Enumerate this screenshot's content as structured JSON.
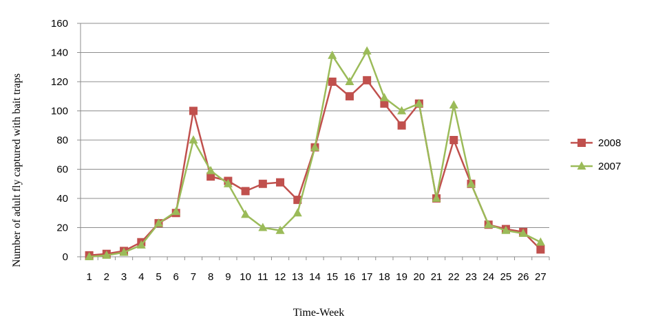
{
  "chart_data": {
    "type": "line",
    "title": "",
    "xlabel": "Time-Week",
    "ylabel": "Number of adult fly captured with bait traps",
    "categories": [
      "1",
      "2",
      "3",
      "4",
      "5",
      "6",
      "7",
      "8",
      "9",
      "10",
      "11",
      "12",
      "13",
      "14",
      "15",
      "16",
      "17",
      "18",
      "19",
      "20",
      "21",
      "22",
      "23",
      "24",
      "25",
      "26",
      "27"
    ],
    "ylim": [
      0,
      160
    ],
    "yticks": [
      0,
      20,
      40,
      60,
      80,
      100,
      120,
      140,
      160
    ],
    "grid": "horizontal",
    "legend_position": "right",
    "series": [
      {
        "name": "2008",
        "color": "#c0504d",
        "marker": "square",
        "values": [
          1,
          2,
          4,
          10,
          23,
          30,
          100,
          55,
          52,
          45,
          50,
          51,
          39,
          75,
          120,
          110,
          121,
          105,
          90,
          105,
          40,
          80,
          50,
          22,
          19,
          17,
          5
        ]
      },
      {
        "name": "2007",
        "color": "#9bbb59",
        "marker": "triangle",
        "values": [
          0,
          1,
          3,
          8,
          23,
          31,
          80,
          59,
          50,
          29,
          20,
          18,
          30,
          75,
          138,
          120,
          141,
          109,
          100,
          105,
          40,
          104,
          50,
          22,
          18,
          16,
          10
        ]
      }
    ]
  }
}
